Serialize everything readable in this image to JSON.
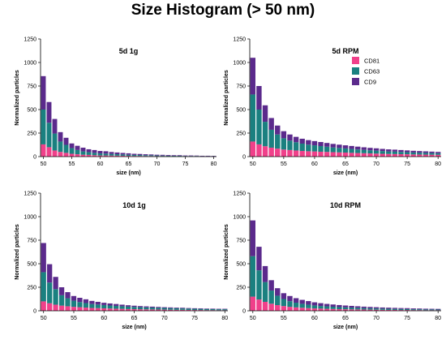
{
  "title": "Size Histogram (> 50 nm)",
  "colors": {
    "CD81": "#f0408a",
    "CD63": "#1a8080",
    "CD9": "#5b2a8c"
  },
  "chart_data": [
    {
      "type": "bar",
      "title": "5d 1g",
      "xlabel": "size (nm)",
      "ylabel": "Normalized particles",
      "ylim": [
        0,
        1250
      ],
      "yticks": [
        0,
        250,
        500,
        750,
        1000,
        1250
      ],
      "xticks": [
        50,
        55,
        60,
        65,
        70,
        75,
        80
      ],
      "x": [
        50,
        51,
        52,
        53,
        54,
        55,
        56,
        57,
        58,
        59,
        60,
        61,
        62,
        63,
        64,
        65,
        66,
        67,
        68,
        69,
        70,
        71,
        72,
        73,
        74,
        75,
        76,
        77,
        78,
        79,
        80
      ],
      "stacked": true,
      "series": [
        {
          "name": "CD81",
          "values": [
            130,
            100,
            65,
            50,
            40,
            30,
            25,
            20,
            18,
            15,
            12,
            12,
            11,
            10,
            9,
            8,
            7,
            7,
            6,
            6,
            5,
            5,
            4,
            4,
            4,
            3,
            3,
            3,
            2,
            2,
            2
          ]
        },
        {
          "name": "CD63",
          "values": [
            370,
            260,
            180,
            110,
            85,
            60,
            45,
            35,
            30,
            25,
            22,
            20,
            18,
            16,
            14,
            12,
            11,
            10,
            9,
            8,
            7,
            6,
            6,
            5,
            5,
            4,
            4,
            4,
            3,
            3,
            3
          ]
        },
        {
          "name": "CD9",
          "values": [
            355,
            220,
            155,
            100,
            75,
            50,
            45,
            40,
            30,
            30,
            26,
            25,
            20,
            18,
            16,
            15,
            12,
            11,
            10,
            9,
            8,
            8,
            7,
            6,
            6,
            5,
            5,
            4,
            4,
            4,
            3
          ]
        }
      ]
    },
    {
      "type": "bar",
      "title": "5d RPM",
      "xlabel": "size (nm)",
      "ylabel": "Normalized particles",
      "ylim": [
        0,
        1250
      ],
      "yticks": [
        0,
        250,
        500,
        750,
        1000,
        1250
      ],
      "xticks": [
        50,
        55,
        60,
        65,
        70,
        75,
        80
      ],
      "legend_position": "top-right",
      "x": [
        50,
        51,
        52,
        53,
        54,
        55,
        56,
        57,
        58,
        59,
        60,
        61,
        62,
        63,
        64,
        65,
        66,
        67,
        68,
        69,
        70,
        71,
        72,
        73,
        74,
        75,
        76,
        77,
        78,
        79,
        80
      ],
      "stacked": true,
      "series": [
        {
          "name": "CD81",
          "values": [
            160,
            130,
            110,
            95,
            85,
            75,
            70,
            65,
            60,
            57,
            55,
            52,
            50,
            47,
            45,
            43,
            40,
            38,
            36,
            34,
            32,
            30,
            28,
            27,
            26,
            25,
            23,
            22,
            21,
            20,
            19
          ]
        },
        {
          "name": "CD63",
          "values": [
            500,
            370,
            260,
            190,
            150,
            120,
            100,
            88,
            78,
            70,
            65,
            60,
            55,
            50,
            47,
            44,
            41,
            38,
            35,
            33,
            31,
            29,
            27,
            26,
            24,
            22,
            21,
            20,
            19,
            18,
            17
          ]
        },
        {
          "name": "CD9",
          "values": [
            390,
            250,
            175,
            125,
            95,
            75,
            65,
            57,
            52,
            48,
            45,
            43,
            40,
            38,
            35,
            33,
            32,
            30,
            28,
            26,
            25,
            23,
            22,
            21,
            20,
            19,
            18,
            17,
            16,
            15,
            14
          ]
        }
      ]
    },
    {
      "type": "bar",
      "title": "10d 1g",
      "xlabel": "size (nm)",
      "ylabel": "Normalized particles",
      "ylim": [
        0,
        1250
      ],
      "yticks": [
        0,
        250,
        500,
        750,
        1000,
        1250
      ],
      "xticks": [
        50,
        55,
        60,
        65,
        70,
        75,
        80
      ],
      "x": [
        50,
        51,
        52,
        53,
        54,
        55,
        56,
        57,
        58,
        59,
        60,
        61,
        62,
        63,
        64,
        65,
        66,
        67,
        68,
        69,
        70,
        71,
        72,
        73,
        74,
        75,
        76,
        77,
        78,
        79,
        80
      ],
      "stacked": true,
      "series": [
        {
          "name": "CD81",
          "values": [
            100,
            80,
            65,
            55,
            48,
            42,
            38,
            34,
            30,
            28,
            26,
            24,
            22,
            20,
            18,
            17,
            16,
            15,
            14,
            13,
            12,
            11,
            10,
            10,
            9,
            8,
            8,
            7,
            7,
            6,
            6
          ]
        },
        {
          "name": "CD63",
          "values": [
            310,
            220,
            165,
            110,
            85,
            65,
            55,
            48,
            42,
            38,
            35,
            32,
            30,
            28,
            26,
            24,
            22,
            21,
            20,
            19,
            18,
            17,
            16,
            15,
            14,
            13,
            12,
            12,
            11,
            10,
            10
          ]
        },
        {
          "name": "CD9",
          "values": [
            310,
            195,
            130,
            85,
            65,
            50,
            45,
            40,
            33,
            29,
            24,
            22,
            20,
            17,
            15,
            13,
            12,
            11,
            10,
            9,
            8,
            8,
            7,
            7,
            6,
            6,
            6,
            5,
            5,
            5,
            5
          ]
        }
      ]
    },
    {
      "type": "bar",
      "title": "10d RPM",
      "xlabel": "size (nm)",
      "ylabel": "Normalized particles",
      "ylim": [
        0,
        1250
      ],
      "yticks": [
        0,
        250,
        500,
        750,
        1000,
        1250
      ],
      "xticks": [
        50,
        55,
        60,
        65,
        70,
        75,
        80
      ],
      "x": [
        50,
        51,
        52,
        53,
        54,
        55,
        56,
        57,
        58,
        59,
        60,
        61,
        62,
        63,
        64,
        65,
        66,
        67,
        68,
        69,
        70,
        71,
        72,
        73,
        74,
        75,
        76,
        77,
        78,
        79,
        80
      ],
      "stacked": true,
      "series": [
        {
          "name": "CD81",
          "values": [
            150,
            120,
            95,
            75,
            60,
            50,
            42,
            36,
            32,
            28,
            25,
            23,
            21,
            19,
            17,
            16,
            15,
            14,
            13,
            12,
            11,
            10,
            9,
            9,
            8,
            8,
            7,
            7,
            6,
            6,
            6
          ]
        },
        {
          "name": "CD63",
          "values": [
            430,
            310,
            210,
            140,
            100,
            75,
            60,
            50,
            42,
            37,
            32,
            28,
            26,
            24,
            22,
            20,
            19,
            18,
            16,
            15,
            14,
            13,
            12,
            11,
            11,
            10,
            9,
            9,
            8,
            8,
            7
          ]
        },
        {
          "name": "CD9",
          "values": [
            380,
            250,
            170,
            110,
            80,
            62,
            55,
            48,
            42,
            38,
            33,
            30,
            26,
            24,
            22,
            20,
            18,
            16,
            15,
            14,
            13,
            12,
            12,
            11,
            10,
            10,
            9,
            8,
            8,
            7,
            7
          ]
        }
      ]
    }
  ]
}
